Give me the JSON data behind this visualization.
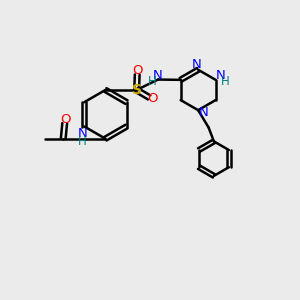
{
  "background_color": "#ebebeb",
  "bond_color": "#000000",
  "colors": {
    "N": "#0000ff",
    "O": "#ff0000",
    "S": "#ccaa00",
    "H": "#008080",
    "C": "#000000"
  },
  "figsize": [
    3.0,
    3.0
  ],
  "dpi": 100
}
